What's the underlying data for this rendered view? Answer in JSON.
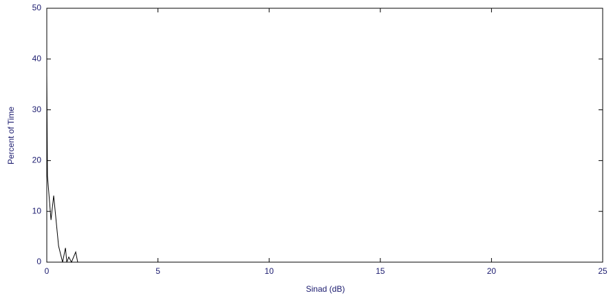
{
  "chart_data": {
    "type": "line",
    "x_label": "Sinad (dB)",
    "y_label": "Percent of Time",
    "xlim": [
      0,
      25
    ],
    "xticks": [
      0,
      5,
      10,
      15,
      20,
      25
    ],
    "ylim": [
      0,
      50
    ],
    "yticks": [
      0,
      10,
      20,
      30,
      40,
      50
    ],
    "series": [
      {
        "color": "#000000",
        "x": [
          0,
          0.03,
          0.19,
          0.31,
          0.53,
          0.71,
          0.84,
          0.9,
          0.99,
          1.11,
          1.3,
          1.39
        ],
        "values": [
          37,
          17,
          8.3,
          13.1,
          3.2,
          0,
          2.8,
          0,
          1,
          0,
          2,
          0
        ]
      }
    ]
  }
}
